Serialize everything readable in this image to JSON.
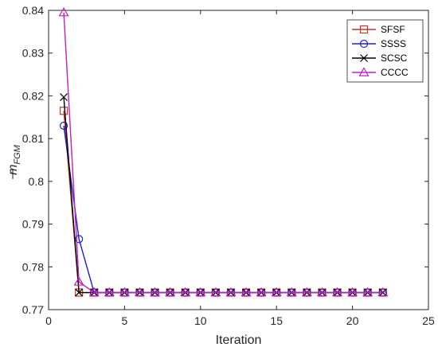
{
  "chart_data": {
    "type": "line",
    "xlabel": "Iteration",
    "ylabel": "m̅ FGM",
    "xlim": [
      0,
      25
    ],
    "ylim": [
      0.77,
      0.84
    ],
    "xticks": [
      0,
      5,
      10,
      15,
      20,
      25
    ],
    "yticks": [
      0.77,
      0.78,
      0.79,
      0.8,
      0.81,
      0.82,
      0.83,
      0.84
    ],
    "grid": false,
    "legend_position": "top-right",
    "series": [
      {
        "name": "SFSF",
        "color": "#c0392b",
        "marker": "square",
        "x": [
          1,
          2,
          3,
          4,
          5,
          6,
          7,
          8,
          9,
          10,
          11,
          12,
          13,
          14,
          15,
          16,
          17,
          18,
          19,
          20,
          21,
          22
        ],
        "values": [
          0.8165,
          0.774,
          0.774,
          0.774,
          0.774,
          0.774,
          0.774,
          0.774,
          0.774,
          0.774,
          0.774,
          0.774,
          0.774,
          0.774,
          0.774,
          0.774,
          0.774,
          0.774,
          0.774,
          0.774,
          0.774,
          0.774
        ]
      },
      {
        "name": "SSSS",
        "color": "#1f1fcc",
        "marker": "circle",
        "x": [
          1,
          2,
          3,
          4,
          5,
          6,
          7,
          8,
          9,
          10,
          11,
          12,
          13,
          14,
          15,
          16,
          17,
          18,
          19,
          20,
          21,
          22
        ],
        "values": [
          0.813,
          0.7865,
          0.774,
          0.774,
          0.774,
          0.774,
          0.774,
          0.774,
          0.774,
          0.774,
          0.774,
          0.774,
          0.774,
          0.774,
          0.774,
          0.774,
          0.774,
          0.774,
          0.774,
          0.774,
          0.774,
          0.774
        ]
      },
      {
        "name": "SCSC",
        "color": "#000000",
        "marker": "x",
        "x": [
          1,
          2,
          3,
          4,
          5,
          6,
          7,
          8,
          9,
          10,
          11,
          12,
          13,
          14,
          15,
          16,
          17,
          18,
          19,
          20,
          21,
          22
        ],
        "values": [
          0.8197,
          0.774,
          0.774,
          0.774,
          0.774,
          0.774,
          0.774,
          0.774,
          0.774,
          0.774,
          0.774,
          0.774,
          0.774,
          0.774,
          0.774,
          0.774,
          0.774,
          0.774,
          0.774,
          0.774,
          0.774,
          0.774
        ]
      },
      {
        "name": "CCCC",
        "color": "#c020c0",
        "marker": "triangle",
        "x": [
          1,
          2,
          3,
          4,
          5,
          6,
          7,
          8,
          9,
          10,
          11,
          12,
          13,
          14,
          15,
          16,
          17,
          18,
          19,
          20,
          21,
          22
        ],
        "values": [
          0.8395,
          0.7765,
          0.774,
          0.774,
          0.774,
          0.774,
          0.774,
          0.774,
          0.774,
          0.774,
          0.774,
          0.774,
          0.774,
          0.774,
          0.774,
          0.774,
          0.774,
          0.774,
          0.774,
          0.774,
          0.774,
          0.774
        ]
      }
    ]
  }
}
